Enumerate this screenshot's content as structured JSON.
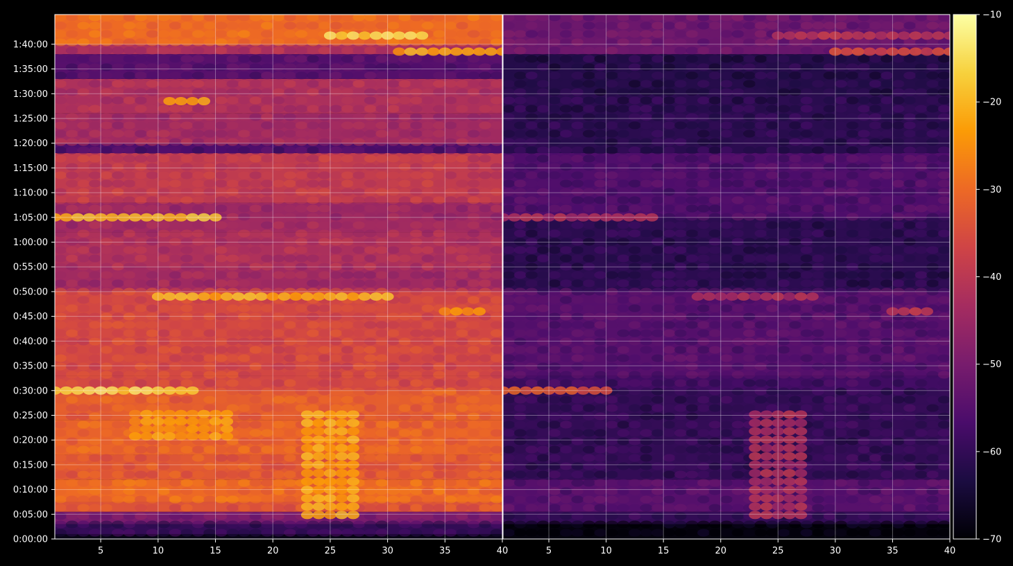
{
  "chart_data": {
    "type": "heatmap",
    "background": "#000000",
    "colormap": "inferno",
    "colormap_stops": [
      "#000004",
      "#1b0c41",
      "#4a0c6b",
      "#781c6d",
      "#a52c60",
      "#cf4446",
      "#ed6925",
      "#fb9b06",
      "#f7d13d",
      "#fcffa4"
    ],
    "grid": true,
    "title": "",
    "xlabel": "",
    "ylabel": "",
    "ylim": [
      0,
      6360
    ],
    "y_ticks": [
      "0:00:00",
      "0:05:00",
      "0:10:00",
      "0:15:00",
      "0:20:00",
      "0:25:00",
      "0:30:00",
      "0:35:00",
      "0:40:00",
      "0:45:00",
      "0:50:00",
      "0:55:00",
      "1:00:00",
      "1:05:00",
      "1:10:00",
      "1:15:00",
      "1:20:00",
      "1:25:00",
      "1:30:00",
      "1:35:00",
      "1:40:00"
    ],
    "y_tick_seconds": [
      0,
      300,
      600,
      900,
      1200,
      1500,
      1800,
      2100,
      2400,
      2700,
      3000,
      3300,
      3600,
      3900,
      4200,
      4500,
      4800,
      5100,
      5400,
      5700,
      6000
    ],
    "colorbar": {
      "range": [
        -70,
        -10
      ],
      "ticks": [
        "−10",
        "−20",
        "−30",
        "−40",
        "−50",
        "−60",
        "−70"
      ],
      "tick_values": [
        -10,
        -20,
        -30,
        -40,
        -50,
        -60,
        -70
      ]
    },
    "panels": [
      {
        "xlim": [
          1,
          40
        ],
        "x_ticks": [
          "5",
          "10",
          "15",
          "20",
          "25",
          "30",
          "35",
          "40"
        ],
        "x_tick_values": [
          5,
          10,
          15,
          20,
          25,
          30,
          35,
          40
        ],
        "base_level": -38,
        "stripes": [
          {
            "t0": "0:00:00",
            "t1": "0:01:00",
            "value": -68
          },
          {
            "t0": "0:01:00",
            "t1": "0:03:00",
            "value": -60
          },
          {
            "t0": "0:03:00",
            "t1": "0:05:30",
            "value": -50
          },
          {
            "t0": "0:05:30",
            "t1": "0:07:30",
            "value": -34
          },
          {
            "t0": "0:07:30",
            "t1": "0:12:00",
            "value": -30
          },
          {
            "t0": "0:12:00",
            "t1": "0:17:00",
            "value": -33
          },
          {
            "t0": "0:17:00",
            "t1": "0:24:00",
            "value": -31
          },
          {
            "t0": "0:24:00",
            "t1": "0:30:00",
            "value": -32
          },
          {
            "t0": "0:30:00",
            "t1": "0:33:00",
            "value": -36
          },
          {
            "t0": "0:33:00",
            "t1": "0:40:00",
            "value": -36
          },
          {
            "t0": "0:40:00",
            "t1": "0:50:00",
            "value": -36
          },
          {
            "t0": "0:50:00",
            "t1": "0:55:00",
            "value": -44
          },
          {
            "t0": "0:55:00",
            "t1": "1:02:00",
            "value": -42
          },
          {
            "t0": "1:02:00",
            "t1": "1:05:00",
            "value": -44
          },
          {
            "t0": "1:05:00",
            "t1": "1:08:00",
            "value": -45
          },
          {
            "t0": "1:08:00",
            "t1": "1:18:00",
            "value": -39
          },
          {
            "t0": "1:18:00",
            "t1": "1:20:00",
            "value": -56
          },
          {
            "t0": "1:20:00",
            "t1": "1:26:00",
            "value": -44
          },
          {
            "t0": "1:26:00",
            "t1": "1:33:00",
            "value": -42
          },
          {
            "t0": "1:33:00",
            "t1": "1:38:00",
            "value": -55
          },
          {
            "t0": "1:38:00",
            "t1": "1:40:00",
            "value": -42
          },
          {
            "t0": "1:40:00",
            "t1": "1:46:00",
            "value": -30
          }
        ],
        "hotspots": [
          {
            "t0": "0:04:00",
            "t1": "0:26:00",
            "x0": 23,
            "x1": 27,
            "value": -22
          },
          {
            "t0": "0:20:00",
            "t1": "0:26:00",
            "x0": 8,
            "x1": 16,
            "value": -24
          },
          {
            "t0": "0:29:30",
            "t1": "0:30:30",
            "x0": 1,
            "x1": 13,
            "value": -16
          },
          {
            "t0": "0:48:30",
            "t1": "0:49:30",
            "x0": 10,
            "x1": 30,
            "value": -21
          },
          {
            "t0": "0:45:30",
            "t1": "0:46:30",
            "x0": 35,
            "x1": 38,
            "value": -24
          },
          {
            "t0": "1:04:30",
            "t1": "1:05:30",
            "x0": 1,
            "x1": 15,
            "value": -19
          },
          {
            "t0": "1:28:00",
            "t1": "1:29:00",
            "x0": 11,
            "x1": 14,
            "value": -22
          },
          {
            "t0": "1:38:00",
            "t1": "1:39:00",
            "x0": 31,
            "x1": 40,
            "value": -22
          },
          {
            "t0": "1:41:00",
            "t1": "1:42:30",
            "x0": 25,
            "x1": 33,
            "value": -16
          }
        ]
      },
      {
        "xlim": [
          1,
          40
        ],
        "x_ticks": [
          "5",
          "10",
          "15",
          "20",
          "25",
          "30",
          "35",
          "40"
        ],
        "x_tick_values": [
          5,
          10,
          15,
          20,
          25,
          30,
          35,
          40
        ],
        "base_level": -56,
        "stripes": [
          {
            "t0": "0:00:00",
            "t1": "0:03:00",
            "value": -69
          },
          {
            "t0": "0:03:00",
            "t1": "0:05:30",
            "value": -60
          },
          {
            "t0": "0:05:30",
            "t1": "0:12:00",
            "value": -55
          },
          {
            "t0": "0:12:00",
            "t1": "0:30:00",
            "value": -60
          },
          {
            "t0": "0:30:00",
            "t1": "0:33:00",
            "value": -58
          },
          {
            "t0": "0:33:00",
            "t1": "0:50:00",
            "value": -55
          },
          {
            "t0": "0:50:00",
            "t1": "1:05:00",
            "value": -61
          },
          {
            "t0": "1:05:00",
            "t1": "1:18:00",
            "value": -56
          },
          {
            "t0": "1:18:00",
            "t1": "1:30:00",
            "value": -61
          },
          {
            "t0": "1:30:00",
            "t1": "1:38:00",
            "value": -62
          },
          {
            "t0": "1:38:00",
            "t1": "1:46:00",
            "value": -52
          }
        ],
        "hotspots": [
          {
            "t0": "0:04:00",
            "t1": "0:26:00",
            "x0": 23,
            "x1": 27,
            "value": -42
          },
          {
            "t0": "0:29:30",
            "t1": "0:30:30",
            "x0": 1,
            "x1": 10,
            "value": -33
          },
          {
            "t0": "0:48:30",
            "t1": "0:49:30",
            "x0": 18,
            "x1": 28,
            "value": -42
          },
          {
            "t0": "0:45:30",
            "t1": "0:46:30",
            "x0": 35,
            "x1": 38,
            "value": -38
          },
          {
            "t0": "1:04:30",
            "t1": "1:05:30",
            "x0": 1,
            "x1": 14,
            "value": -42
          },
          {
            "t0": "1:38:00",
            "t1": "1:39:00",
            "x0": 30,
            "x1": 40,
            "value": -36
          },
          {
            "t0": "1:41:00",
            "t1": "1:42:30",
            "x0": 25,
            "x1": 40,
            "value": -40
          }
        ]
      }
    ]
  }
}
